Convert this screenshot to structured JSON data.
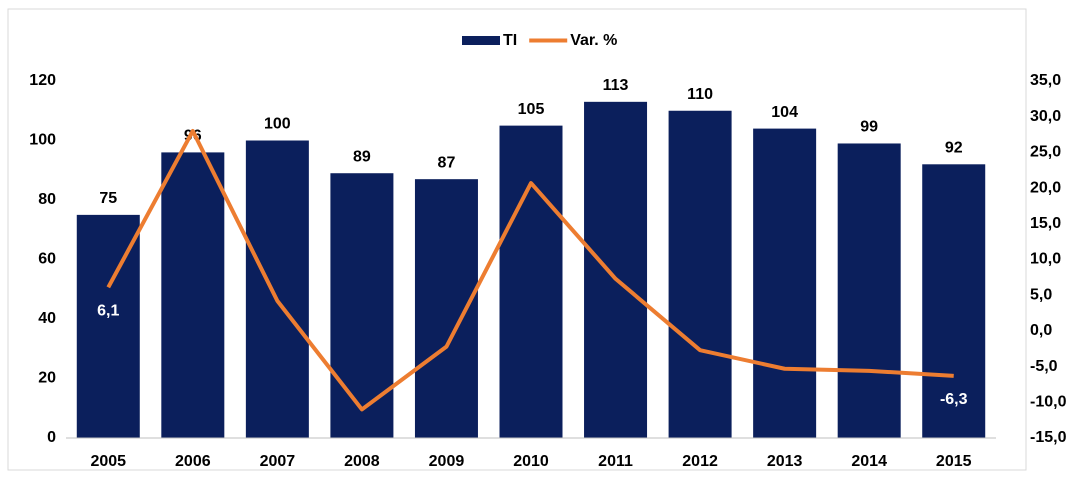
{
  "chart_data": {
    "type": "bar",
    "categories": [
      "2005",
      "2006",
      "2007",
      "2008",
      "2009",
      "2010",
      "2011",
      "2012",
      "2013",
      "2014",
      "2015"
    ],
    "series": [
      {
        "name": "TI",
        "type": "bar",
        "color": "#0b1f5c",
        "values": [
          75,
          96,
          100,
          89,
          87,
          105,
          113,
          110,
          104,
          99,
          92
        ]
      },
      {
        "name": "Var. %",
        "type": "line",
        "axis": "y2",
        "color": "#ed7d31",
        "values": [
          6.1,
          28.0,
          4.2,
          -11.0,
          -2.2,
          20.7,
          7.3,
          -2.7,
          -5.3,
          -5.6,
          -6.3
        ],
        "value_labels": [
          "6,1",
          null,
          null,
          null,
          null,
          null,
          null,
          null,
          null,
          null,
          "-6,3"
        ]
      }
    ],
    "ylim": [
      0,
      120
    ],
    "yticks": [
      0,
      20,
      40,
      60,
      80,
      100,
      120
    ],
    "y2lim": [
      -15,
      35
    ],
    "y2ticks": [
      {
        "value": -15,
        "label": "-15,0"
      },
      {
        "value": -10,
        "label": "-10,0"
      },
      {
        "value": -5,
        "label": "-5,0"
      },
      {
        "value": 0,
        "label": "0,0"
      },
      {
        "value": 5,
        "label": "5,0"
      },
      {
        "value": 10,
        "label": "10,0"
      },
      {
        "value": 15,
        "label": "15,0"
      },
      {
        "value": 20,
        "label": "20,0"
      },
      {
        "value": 25,
        "label": "25,0"
      },
      {
        "value": 30,
        "label": "30,0"
      },
      {
        "value": 35,
        "label": "35,0"
      }
    ],
    "legend": "top"
  }
}
